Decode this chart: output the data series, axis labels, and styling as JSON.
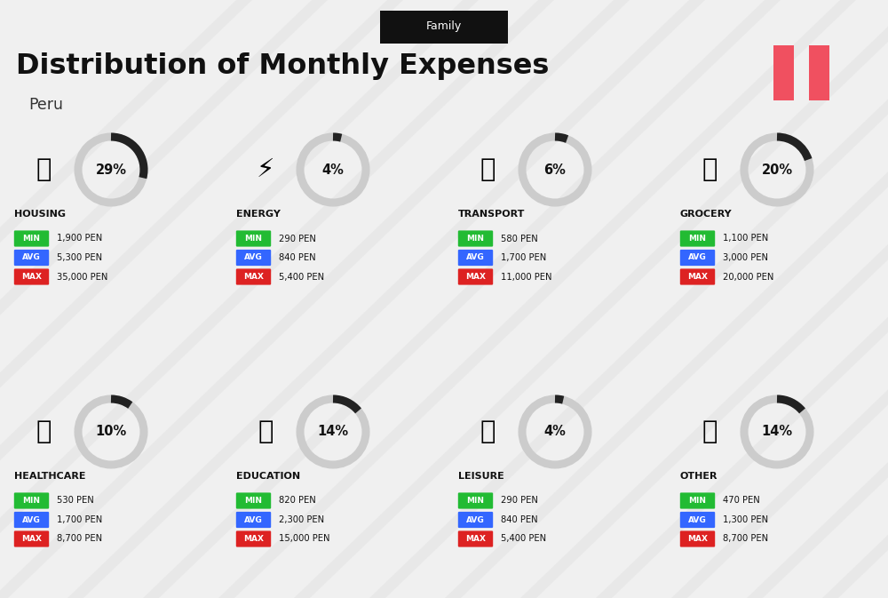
{
  "title": "Distribution of Monthly Expenses",
  "subtitle": "Peru",
  "family_label": "Family",
  "bg_color": "#f0f0f0",
  "title_color": "#111111",
  "subtitle_color": "#333333",
  "family_bg": "#111111",
  "family_text": "#ffffff",
  "min_color": "#22bb33",
  "avg_color": "#3366ff",
  "max_color": "#dd2222",
  "peru_flag_red": "#f05060",
  "categories": [
    {
      "name": "HOUSING",
      "pct": 29,
      "min": "1,900 PEN",
      "avg": "5,300 PEN",
      "max": "35,000 PEN",
      "row": 0,
      "col": 0
    },
    {
      "name": "ENERGY",
      "pct": 4,
      "min": "290 PEN",
      "avg": "840 PEN",
      "max": "5,400 PEN",
      "row": 0,
      "col": 1
    },
    {
      "name": "TRANSPORT",
      "pct": 6,
      "min": "580 PEN",
      "avg": "1,700 PEN",
      "max": "11,000 PEN",
      "row": 0,
      "col": 2
    },
    {
      "name": "GROCERY",
      "pct": 20,
      "min": "1,100 PEN",
      "avg": "3,000 PEN",
      "max": "20,000 PEN",
      "row": 0,
      "col": 3
    },
    {
      "name": "HEALTHCARE",
      "pct": 10,
      "min": "530 PEN",
      "avg": "1,700 PEN",
      "max": "8,700 PEN",
      "row": 1,
      "col": 0
    },
    {
      "name": "EDUCATION",
      "pct": 14,
      "min": "820 PEN",
      "avg": "2,300 PEN",
      "max": "15,000 PEN",
      "row": 1,
      "col": 1
    },
    {
      "name": "LEISURE",
      "pct": 4,
      "min": "290 PEN",
      "avg": "840 PEN",
      "max": "5,400 PEN",
      "row": 1,
      "col": 2
    },
    {
      "name": "OTHER",
      "pct": 14,
      "min": "470 PEN",
      "avg": "1,300 PEN",
      "max": "8,700 PEN",
      "row": 1,
      "col": 3
    }
  ],
  "col_starts": [
    0.12,
    2.62,
    5.12,
    7.62
  ],
  "row_tops": [
    5.2,
    2.25
  ],
  "circle_grey": "#cccccc",
  "circle_dark": "#222222",
  "value_color": "#111111",
  "name_color": "#111111"
}
